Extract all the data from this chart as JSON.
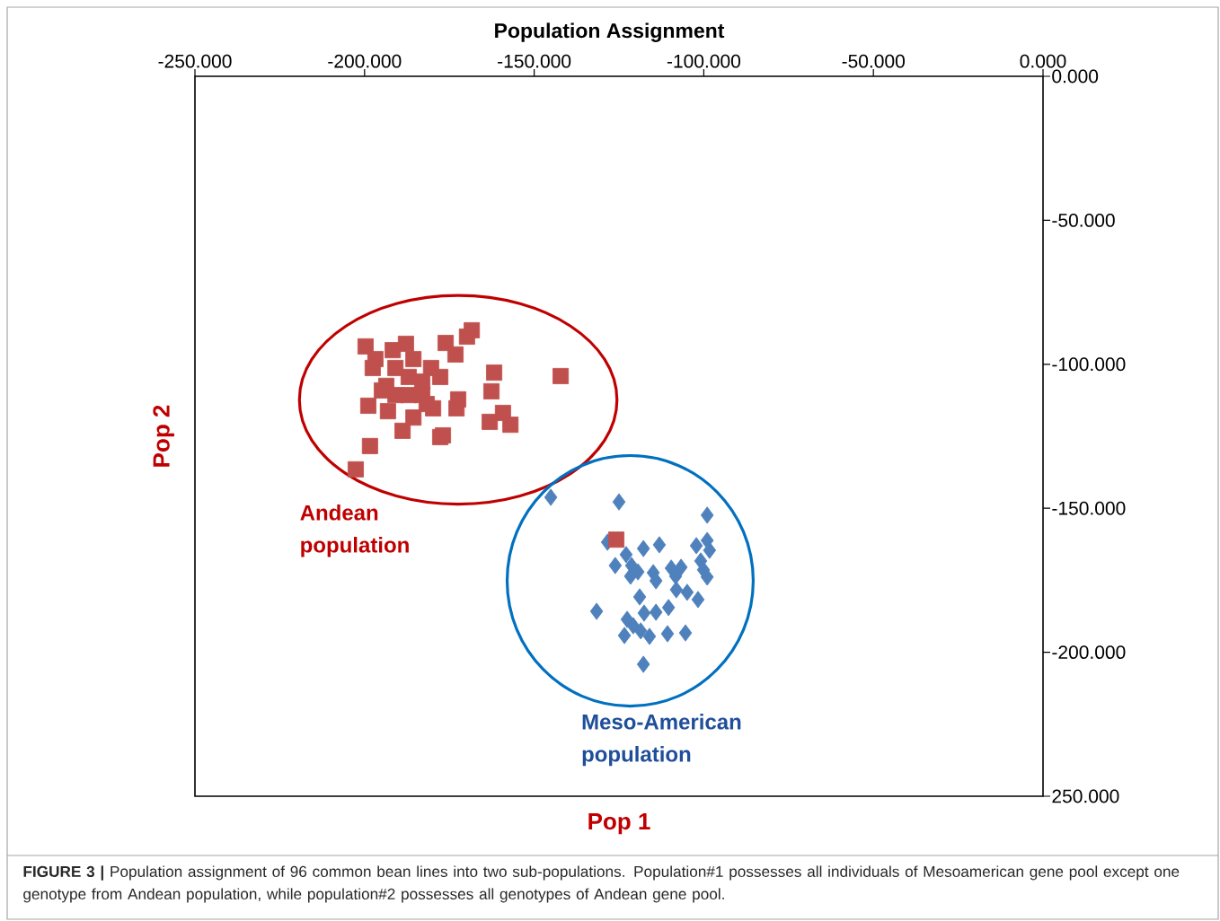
{
  "chart_data": {
    "type": "scatter",
    "title": "Population Assignment",
    "xlabel": "Pop 1",
    "ylabel": "Pop 2",
    "xlim": [
      -250,
      0
    ],
    "ylim": [
      -250,
      0
    ],
    "xticks": [
      {
        "value": -250,
        "label": "-250.000"
      },
      {
        "value": -200,
        "label": "-200.000"
      },
      {
        "value": -150,
        "label": "-150.000"
      },
      {
        "value": -100,
        "label": "-100.000"
      },
      {
        "value": -50,
        "label": "-50.000"
      },
      {
        "value": 0,
        "label": "0.000"
      }
    ],
    "yticks": [
      {
        "value": 0,
        "label": "0.000"
      },
      {
        "value": -50,
        "label": "-50.000"
      },
      {
        "value": -100,
        "label": "-100.000"
      },
      {
        "value": -150,
        "label": "-150.000"
      },
      {
        "value": -200,
        "label": "-200.000"
      },
      {
        "value": -250,
        "label": "250.000"
      }
    ],
    "grid": false,
    "series": [
      {
        "color": "#c0504d",
        "marker": "square",
        "x": [
          -199.7,
          -196.8,
          -191.7,
          -187.8,
          -190.9,
          -197.6,
          -193.6,
          -198.9,
          -193.1,
          -187.0,
          -188.8,
          -185.6,
          -183.0,
          -180.4,
          -177.7,
          -179.8,
          -176.9,
          -172.9,
          -172.4,
          -176.1,
          -173.2,
          -169.8,
          -168.4,
          -161.8,
          -162.6,
          -159.2,
          -163.1,
          -157.0,
          -142.2,
          -198.4,
          -202.6,
          -185.6,
          -183.0,
          -187.0,
          -190.9,
          -194.9,
          -181.7,
          -177.7
        ],
        "values": [
          -93.8,
          -98.2,
          -95.1,
          -92.9,
          -101.3,
          -101.3,
          -107.5,
          -114.4,
          -116.3,
          -110.7,
          -123.1,
          -118.5,
          -110.7,
          -101.3,
          -104.4,
          -115.3,
          -124.7,
          -115.3,
          -112.2,
          -92.6,
          -96.6,
          -90.4,
          -88.2,
          -102.9,
          -109.4,
          -116.9,
          -120.0,
          -121.0,
          -104.1,
          -128.4,
          -136.5,
          -98.2,
          -106.0,
          -104.4,
          -110.7,
          -109.1,
          -113.8,
          -125.3
        ]
      },
      {
        "color": "#4f81bd",
        "marker": "diamond",
        "x": [
          -145.1,
          -125.0,
          -99.0,
          -128.4,
          -117.8,
          -113.1,
          -102.2,
          -99.0,
          -98.3,
          -122.9,
          -126.1,
          -121.3,
          -119.4,
          -121.6,
          -114.9,
          -114.1,
          -109.6,
          -106.7,
          -108.3,
          -100.9,
          -100.1,
          -99.0,
          -118.9,
          -108.1,
          -104.9,
          -101.7,
          -131.6,
          -117.6,
          -114.1,
          -110.4,
          -122.6,
          -120.8,
          -123.4,
          -118.6,
          -116.0,
          -110.7,
          -105.4,
          -117.8
        ],
        "values": [
          -146.2,
          -147.8,
          -152.4,
          -161.8,
          -164.0,
          -162.7,
          -163.0,
          -161.2,
          -164.6,
          -166.1,
          -169.9,
          -169.9,
          -172.1,
          -173.6,
          -172.4,
          -175.2,
          -170.8,
          -170.5,
          -173.6,
          -168.3,
          -171.4,
          -173.9,
          -180.8,
          -178.3,
          -179.2,
          -181.7,
          -185.8,
          -186.4,
          -186.1,
          -184.5,
          -188.6,
          -190.8,
          -194.2,
          -192.6,
          -194.5,
          -193.6,
          -193.3,
          -204.2
        ]
      },
      {
        "color": "#c0504d",
        "marker": "square",
        "x": [
          -125.8
        ],
        "values": [
          -160.9
        ]
      }
    ],
    "annotations": [
      "Andean population",
      "Meso-American population",
      "**FIGURE 3 |** Population assignment of 96 common bean lines into two sub-populations. Population#1 possesses all individuals of Mesoamerican gene pool except one genotype from Andean population, while population#2 possesses all genotypes of Andean gene pool."
    ]
  }
}
